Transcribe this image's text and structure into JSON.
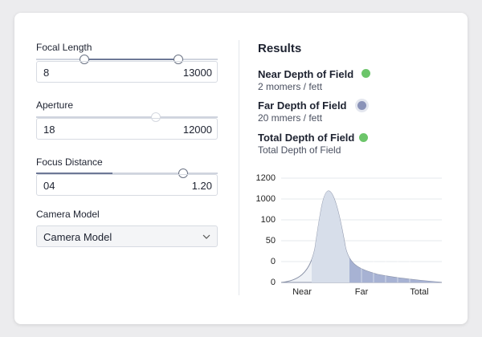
{
  "form": {
    "fields": [
      {
        "label": "Focal Length",
        "min_value": "8",
        "max_value": "13000"
      },
      {
        "label": "Aperture",
        "min_value": "18",
        "max_value": "12000"
      },
      {
        "label": "Focus Distance",
        "min_value": "04",
        "max_value": "1.20"
      }
    ],
    "select": {
      "label": "Camera Model",
      "value": "Camera Model"
    }
  },
  "results": {
    "title": "Results",
    "items": [
      {
        "label": "Near Depth of Field",
        "detail": "2 momers  / fett"
      },
      {
        "label": "Far  Depth of Field",
        "detail": "20 mmers / fett"
      },
      {
        "label": "Total Depth of Field",
        "detail": "Total Depth of Field"
      }
    ]
  },
  "chart": {
    "y_labels": [
      "1200",
      "1000",
      "100",
      "50",
      "0",
      "0"
    ],
    "x_labels": [
      "Near",
      "Far",
      "Total"
    ]
  }
}
